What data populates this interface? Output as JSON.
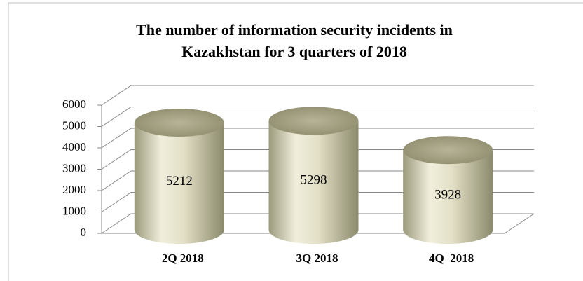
{
  "chart_data": {
    "type": "bar",
    "title": [
      "The number of information security incidents in",
      "Kazakhstan for 3 quarters of 2018"
    ],
    "categories": [
      "2Q 2018",
      "3Q 2018",
      "4Q  2018"
    ],
    "values": [
      5212,
      5298,
      3928
    ],
    "color": "#d9d6bc",
    "ylim": [
      0,
      6000
    ],
    "yticks": [
      0,
      1000,
      2000,
      3000,
      4000,
      5000,
      6000
    ],
    "grid": true
  }
}
